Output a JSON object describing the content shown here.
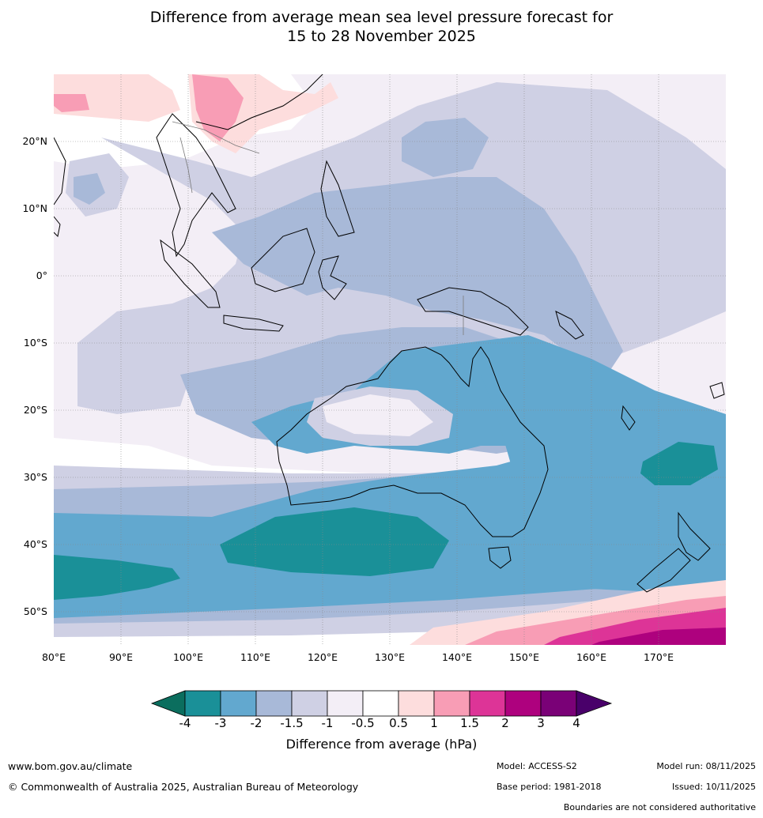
{
  "title": {
    "line1": "Difference from average mean sea level pressure forecast for",
    "line2": "15 to 28 November 2025"
  },
  "axes": {
    "latitudes": [
      "20°N",
      "10°N",
      "0°",
      "10°S",
      "20°S",
      "30°S",
      "40°S",
      "50°S"
    ],
    "longitudes": [
      "80°E",
      "90°E",
      "100°E",
      "110°E",
      "120°E",
      "130°E",
      "140°E",
      "150°E",
      "160°E",
      "170°E"
    ]
  },
  "legend": {
    "ticks": [
      "-4",
      "-3",
      "-2",
      "-1.5",
      "-1",
      "-0.5",
      "0.5",
      "1",
      "1.5",
      "2",
      "3",
      "4"
    ],
    "colors": [
      "#0b6e5e",
      "#1a9098",
      "#62a8cf",
      "#a8b9d8",
      "#cfd0e4",
      "#f3eef6",
      "#ffffff",
      "#fddddd",
      "#f89db5",
      "#dd3497",
      "#ae017e",
      "#7a0177",
      "#49006a"
    ],
    "label": "Difference from average (hPa)"
  },
  "footer": {
    "website": "www.bom.gov.au/climate",
    "copyright": "© Commonwealth of Australia 2025, Australian Bureau of Meteorology",
    "model": "Model: ACCESS-S2",
    "base_period": "Base period: 1981-2018",
    "model_run": "Model run: 08/11/2025",
    "issued": "Issued: 10/11/2025",
    "disclaimer": "Boundaries are not considered authoritative"
  }
}
